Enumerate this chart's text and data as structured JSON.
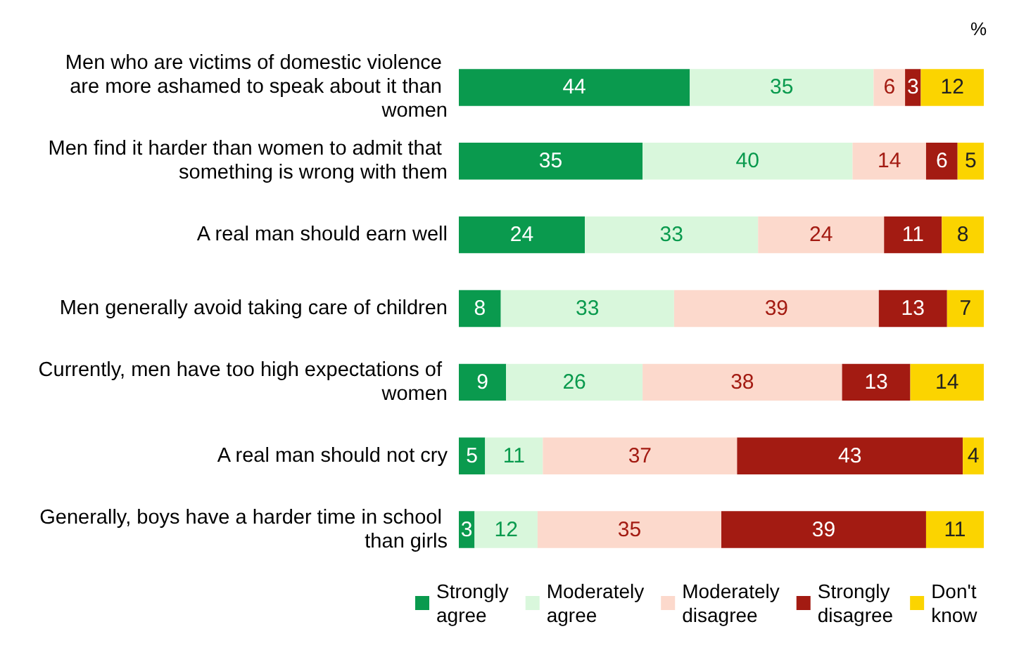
{
  "chart_data": {
    "type": "bar",
    "orientation": "horizontal",
    "stacked": true,
    "data_labels": true,
    "legend": "bottom",
    "annotations": [
      "%"
    ],
    "categories": [
      "Men who are victims of domestic violence are more ashamed to speak about it than women",
      "Men find it harder than women to admit that something is wrong with them",
      "A real man should earn well",
      "Men generally avoid taking care of children",
      "Currently, men have too high expectations of women",
      "A real man should not cry",
      "Generally, boys have a harder time in school than girls"
    ],
    "series": [
      {
        "name": "Strongly agree",
        "color": "#0a9a4e",
        "values": [
          44,
          35,
          24,
          8,
          9,
          5,
          3
        ]
      },
      {
        "name": "Moderately agree",
        "color": "#d9f7dc",
        "values": [
          35,
          40,
          33,
          33,
          26,
          11,
          12
        ]
      },
      {
        "name": "Moderately disagree",
        "color": "#fcd9cc",
        "values": [
          6,
          14,
          24,
          39,
          38,
          37,
          35
        ]
      },
      {
        "name": "Strongly disagree",
        "color": "#a31b12",
        "values": [
          3,
          6,
          11,
          13,
          13,
          43,
          39
        ]
      },
      {
        "name": "Don't know",
        "color": "#fbd400",
        "values": [
          12,
          5,
          8,
          7,
          14,
          4,
          11
        ]
      }
    ]
  }
}
